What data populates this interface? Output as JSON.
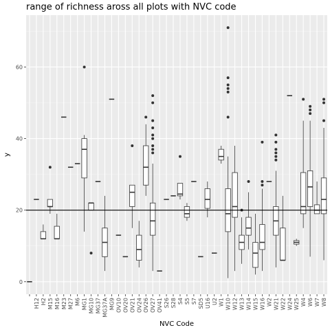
{
  "chart_data": {
    "type": "boxplot",
    "title": "range of richness aross all plots with NVC code",
    "xlabel": "NVC Code",
    "ylabel": "y",
    "ylim": [
      -3.5,
      74.5
    ],
    "yticks": [
      0,
      20,
      40,
      60
    ],
    "reference_line_y": 20,
    "grid": true,
    "categories": [
      "",
      "H12",
      "H2",
      "M15",
      "M16",
      "M23",
      "M27",
      "M6",
      "MG1",
      "MG10",
      "MG37",
      "MG37A",
      "MG9",
      "OV10",
      "OV20",
      "OV21",
      "OV24",
      "OV26",
      "OV27",
      "OV41",
      "S26",
      "S28",
      "S4",
      "S5",
      "S7",
      "SD5",
      "U16",
      "U2",
      "W1",
      "W10",
      "W12",
      "W13",
      "W14",
      "W15",
      "W16",
      "W2",
      "W21",
      "W22",
      "W24",
      "W25",
      "W4",
      "W6",
      "W7",
      "W8"
    ],
    "boxes": [
      {
        "q1": 0,
        "med": 0,
        "q3": 0,
        "lo": 0,
        "hi": 0,
        "out": []
      },
      {
        "q1": 23,
        "med": 23,
        "q3": 23,
        "lo": 23,
        "hi": 23,
        "out": []
      },
      {
        "q1": 12,
        "med": 12,
        "q3": 14,
        "lo": 12,
        "hi": 16,
        "out": []
      },
      {
        "q1": 21,
        "med": 21,
        "q3": 23,
        "lo": 19,
        "hi": 23,
        "out": [
          32
        ]
      },
      {
        "q1": 12,
        "med": 12,
        "q3": 15.5,
        "lo": 12,
        "hi": 19,
        "out": []
      },
      {
        "q1": 46,
        "med": 46,
        "q3": 46,
        "lo": 46,
        "hi": 46,
        "out": []
      },
      {
        "q1": 32,
        "med": 32,
        "q3": 32,
        "lo": 32,
        "hi": 32,
        "out": []
      },
      {
        "q1": 33,
        "med": 33,
        "q3": 33,
        "lo": 33,
        "hi": 33,
        "out": []
      },
      {
        "q1": 29,
        "med": 37,
        "q3": 40,
        "lo": 14,
        "hi": 41,
        "out": [
          60
        ]
      },
      {
        "q1": 20,
        "med": 22,
        "q3": 22,
        "lo": 20,
        "hi": 22,
        "out": [
          8
        ]
      },
      {
        "q1": 28,
        "med": 28,
        "q3": 28,
        "lo": 28,
        "hi": 28,
        "out": []
      },
      {
        "q1": 7,
        "med": 11,
        "q3": 15,
        "lo": 3,
        "hi": 24,
        "out": []
      },
      {
        "q1": 51,
        "med": 51,
        "q3": 51,
        "lo": 51,
        "hi": 51,
        "out": []
      },
      {
        "q1": 13,
        "med": 13,
        "q3": 13,
        "lo": 13,
        "hi": 13,
        "out": []
      },
      {
        "q1": 7,
        "med": 7,
        "q3": 7,
        "lo": 7,
        "hi": 7,
        "out": []
      },
      {
        "q1": 21,
        "med": 25,
        "q3": 27,
        "lo": 15,
        "hi": 27,
        "out": [
          38
        ]
      },
      {
        "q1": 6,
        "med": 9,
        "q3": 13,
        "lo": 4,
        "hi": 17,
        "out": []
      },
      {
        "q1": 27,
        "med": 32,
        "q3": 38,
        "lo": 24,
        "hi": 44,
        "out": [
          46
        ]
      },
      {
        "q1": 13,
        "med": 17,
        "q3": 22,
        "lo": 3,
        "hi": 33,
        "out": [
          36,
          37,
          38,
          40,
          41,
          43,
          45,
          50,
          52
        ]
      },
      {
        "q1": 3,
        "med": 3,
        "q3": 3,
        "lo": 3,
        "hi": 3,
        "out": []
      },
      {
        "q1": 23,
        "med": 23,
        "q3": 23,
        "lo": 23,
        "hi": 23,
        "out": []
      },
      {
        "q1": 24,
        "med": 24,
        "q3": 24,
        "lo": 24,
        "hi": 24,
        "out": []
      },
      {
        "q1": 24,
        "med": 24.5,
        "q3": 27.5,
        "lo": 23,
        "hi": 27.5,
        "out": [
          35
        ]
      },
      {
        "q1": 18,
        "med": 19,
        "q3": 21,
        "lo": 17,
        "hi": 22,
        "out": []
      },
      {
        "q1": 28,
        "med": 28,
        "q3": 28,
        "lo": 28,
        "hi": 28,
        "out": []
      },
      {
        "q1": 7,
        "med": 7,
        "q3": 7,
        "lo": 7,
        "hi": 7,
        "out": []
      },
      {
        "q1": 20.5,
        "med": 23,
        "q3": 26,
        "lo": 18,
        "hi": 28,
        "out": []
      },
      {
        "q1": 8,
        "med": 8,
        "q3": 8,
        "lo": 8,
        "hi": 8,
        "out": []
      },
      {
        "q1": 34,
        "med": 35,
        "q3": 37,
        "lo": 33,
        "hi": 38,
        "out": []
      },
      {
        "q1": 14,
        "med": 19,
        "q3": 26,
        "lo": 1,
        "hi": 35,
        "out": [
          46,
          53,
          54,
          55,
          57,
          71
        ]
      },
      {
        "q1": 18,
        "med": 21,
        "q3": 30.5,
        "lo": 3,
        "hi": 38,
        "out": []
      },
      {
        "q1": 9,
        "med": 11,
        "q3": 13,
        "lo": 5,
        "hi": 18,
        "out": [
          20
        ]
      },
      {
        "q1": 13,
        "med": 15,
        "q3": 18,
        "lo": 9,
        "hi": 25,
        "out": [
          28
        ]
      },
      {
        "q1": 4,
        "med": 8,
        "q3": 11,
        "lo": 2,
        "hi": 19,
        "out": []
      },
      {
        "q1": 9,
        "med": 11,
        "q3": 16,
        "lo": 3,
        "hi": 26,
        "out": [
          27,
          28,
          39
        ]
      },
      {
        "q1": 28,
        "med": 28,
        "q3": 28,
        "lo": 28,
        "hi": 28,
        "out": []
      },
      {
        "q1": 13,
        "med": 17,
        "q3": 21,
        "lo": 4,
        "hi": 31,
        "out": [
          34,
          35,
          36,
          37,
          39,
          41
        ]
      },
      {
        "q1": 6,
        "med": 6,
        "q3": 15,
        "lo": 6,
        "hi": 24,
        "out": []
      },
      {
        "q1": 52,
        "med": 52,
        "q3": 52,
        "lo": 52,
        "hi": 52,
        "out": []
      },
      {
        "q1": 10.5,
        "med": 11,
        "q3": 11.5,
        "lo": 10,
        "hi": 12,
        "out": []
      },
      {
        "q1": 19,
        "med": 21,
        "q3": 30.5,
        "lo": 15,
        "hi": 45,
        "out": [
          51
        ]
      },
      {
        "q1": 21,
        "med": 26.5,
        "q3": 31,
        "lo": 7,
        "hi": 45,
        "out": [
          47,
          48,
          49
        ]
      },
      {
        "q1": 19,
        "med": 20,
        "q3": 21.5,
        "lo": 19,
        "hi": 28,
        "out": []
      },
      {
        "q1": 19,
        "med": 23,
        "q3": 29,
        "lo": 6,
        "hi": 43,
        "out": [
          45,
          50,
          51
        ]
      }
    ]
  }
}
